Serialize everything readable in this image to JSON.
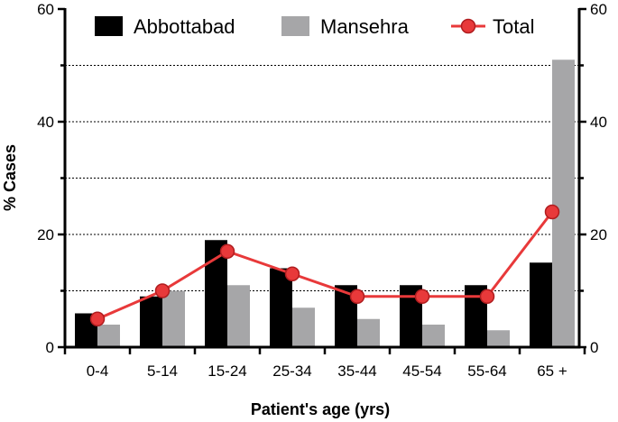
{
  "chart_data": {
    "type": "bar",
    "categories": [
      "0-4",
      "5-14",
      "15-24",
      "25-34",
      "35-44",
      "45-54",
      "55-64",
      "65 +"
    ],
    "series": [
      {
        "name": "Abbottabad",
        "kind": "bar",
        "color": "#000000",
        "values": [
          6,
          9,
          19,
          14,
          11,
          11,
          11,
          15
        ]
      },
      {
        "name": "Mansehra",
        "kind": "bar",
        "color": "#a6a6a8",
        "values": [
          4,
          10,
          11,
          7,
          5,
          4,
          3,
          51
        ]
      },
      {
        "name": "Total",
        "kind": "line",
        "color": "#e8393a",
        "values": [
          5,
          10,
          17,
          13,
          9,
          9,
          9,
          24
        ]
      }
    ],
    "xlabel": "Patient's age (yrs)",
    "ylabel": "% Cases",
    "ylim": [
      0,
      60
    ],
    "yticks": [
      0,
      20,
      40,
      60
    ],
    "secondary_yticks": [
      0,
      20,
      40,
      60
    ],
    "grid": "dotted horizontal at 10-unit intervals",
    "legend": "top"
  }
}
